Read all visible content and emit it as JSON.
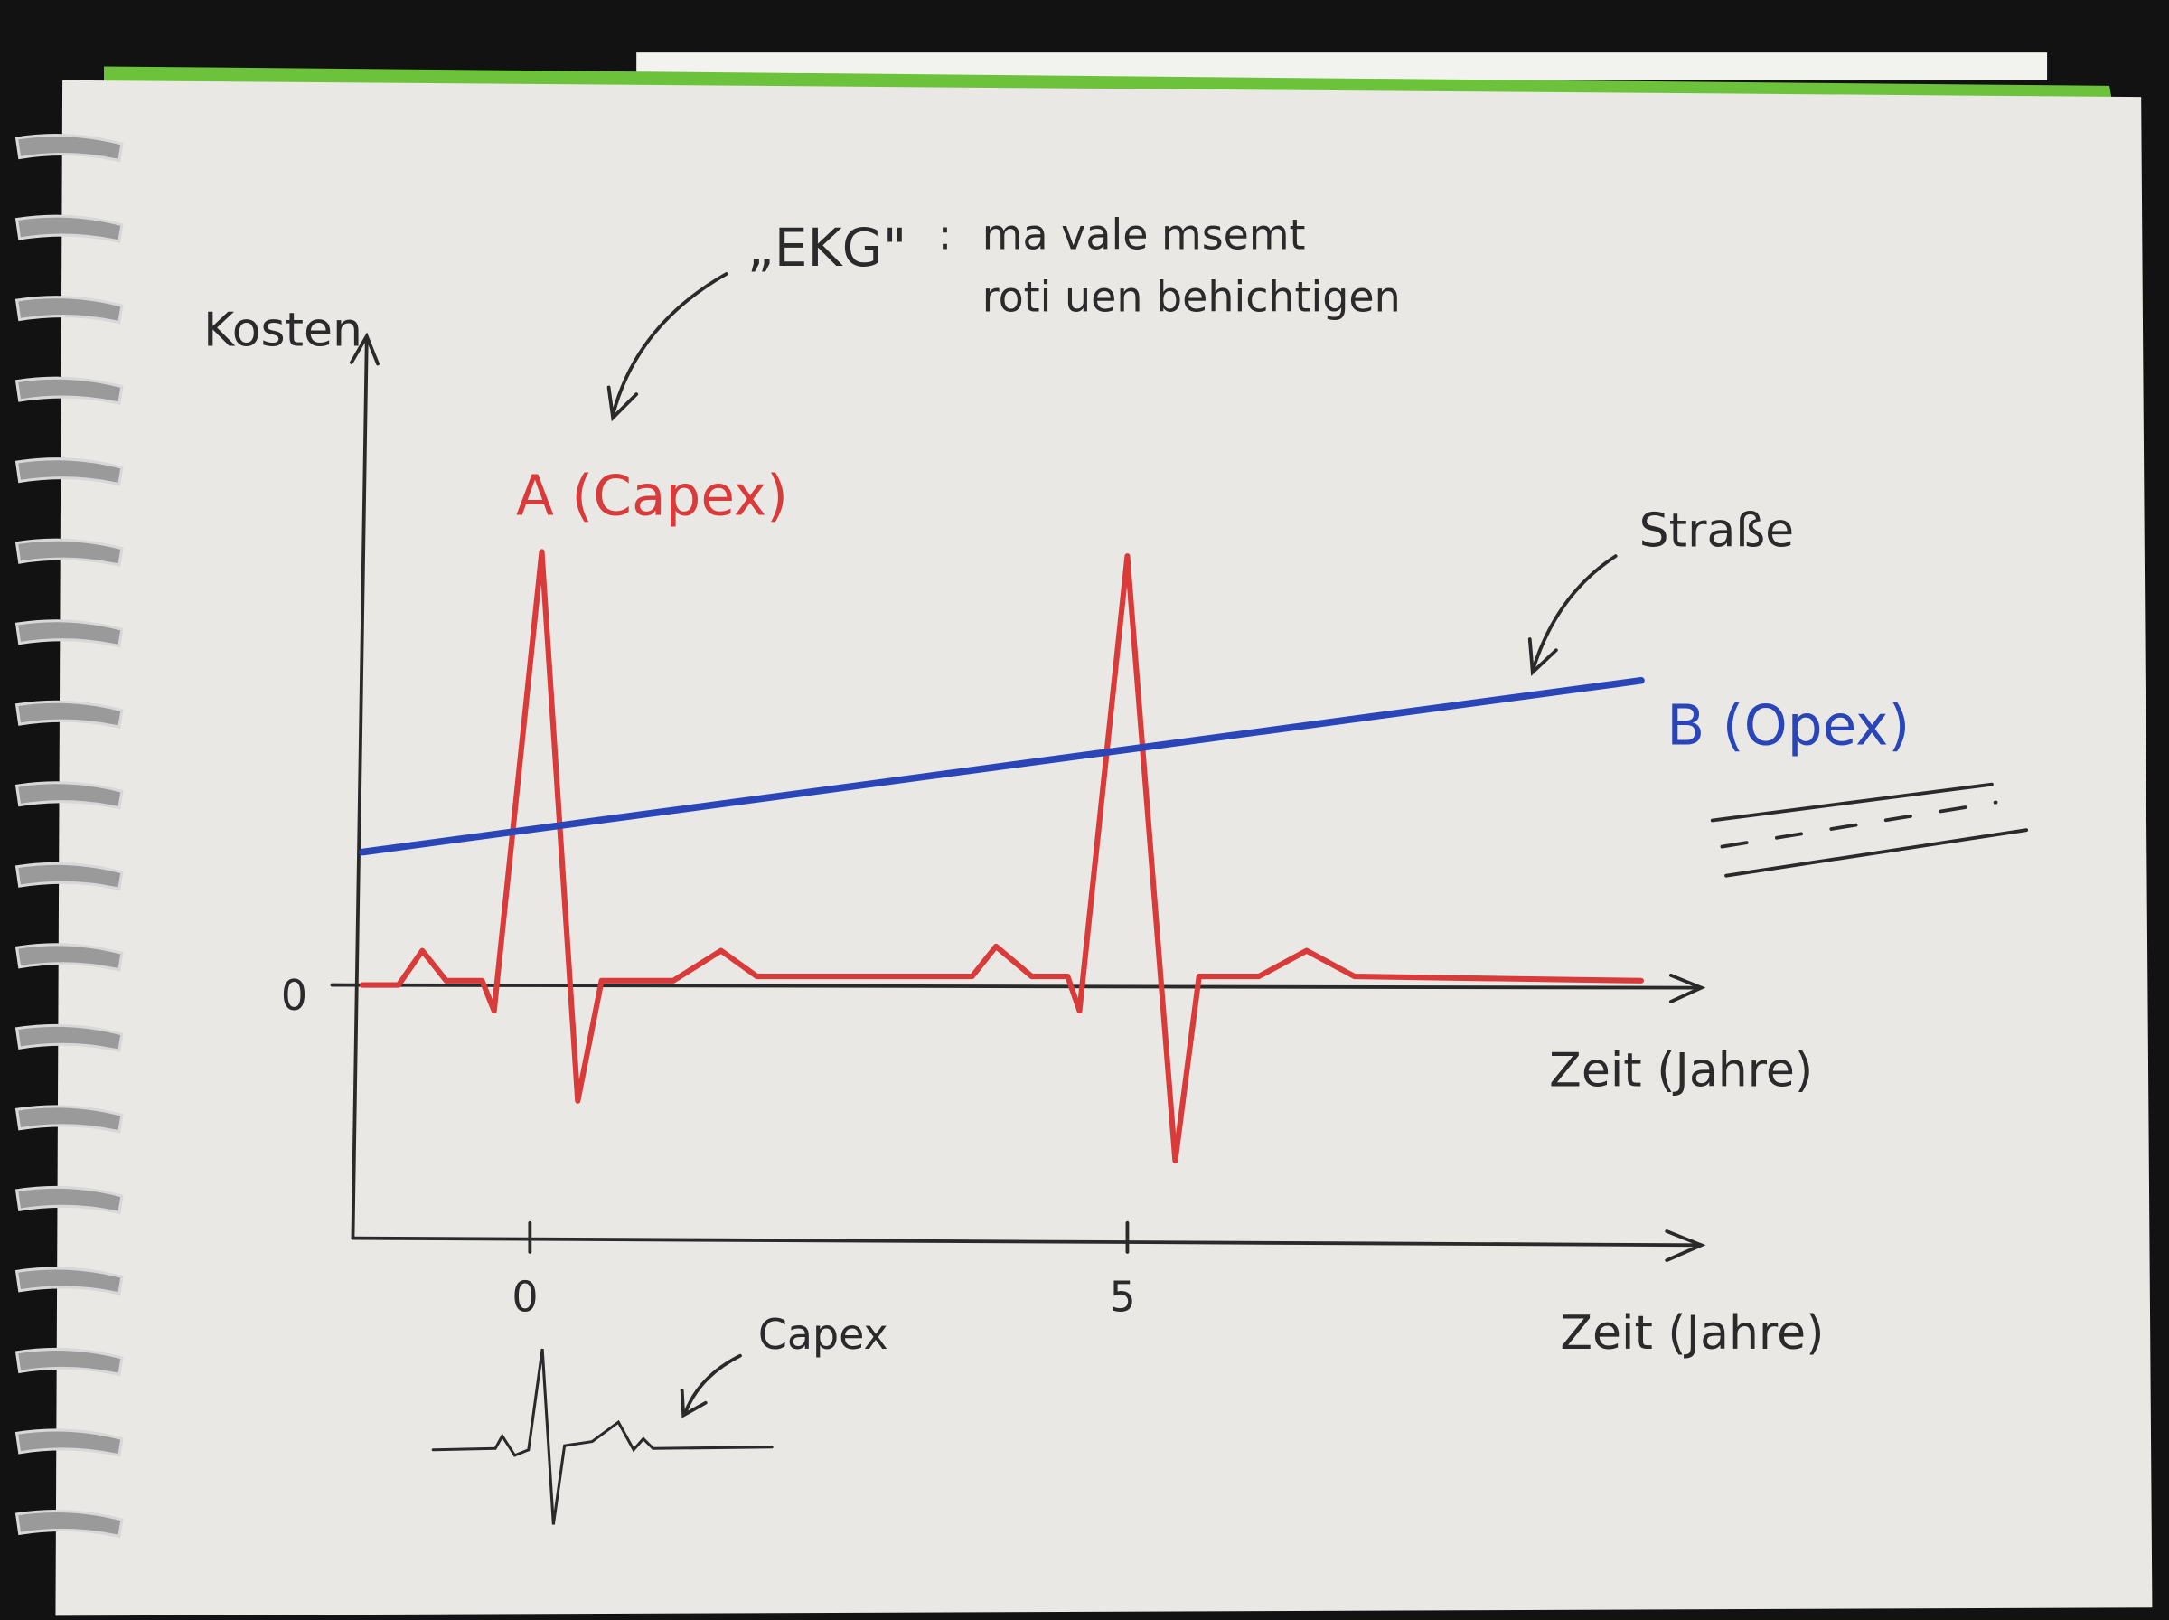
{
  "annotations": {
    "ekg_title": "„EKG\"",
    "ekg_colon": ":",
    "ekg_note_line1": "ma vale msemt",
    "ekg_note_line2": "roti uen behichtigen",
    "strasse": "Straße",
    "capex_small": "Capex"
  },
  "colors": {
    "series_a": "#d93a3a",
    "series_b": "#2a45b8",
    "ink": "#2a2a2a",
    "paper": "#e9e8e4",
    "cover_tab": "#6cc23a"
  },
  "chart_data": {
    "type": "line",
    "ylabel": "Kosten",
    "xlabel": "Zeit (Jahre)",
    "xlabel_lower": "Zeit (Jahre)",
    "y_ticks": [
      "0"
    ],
    "x_ticks": [
      {
        "value": 0,
        "label": "0"
      },
      {
        "value": 5,
        "label": "5"
      }
    ],
    "grid": false,
    "series": [
      {
        "name": "A (Capex)",
        "color": "#d93a3a",
        "points": [
          [
            -1.4,
            0
          ],
          [
            -1.1,
            0
          ],
          [
            -0.9,
            0.8
          ],
          [
            -0.7,
            0.1
          ],
          [
            -0.4,
            0.1
          ],
          [
            -0.3,
            -0.6
          ],
          [
            0.1,
            10.1
          ],
          [
            0.4,
            -2.7
          ],
          [
            0.6,
            0.1
          ],
          [
            1.2,
            0.1
          ],
          [
            1.6,
            0.8
          ],
          [
            1.9,
            0.2
          ],
          [
            3.7,
            0.2
          ],
          [
            3.9,
            0.9
          ],
          [
            4.2,
            0.2
          ],
          [
            4.5,
            0.2
          ],
          [
            4.6,
            -0.6
          ],
          [
            5.0,
            10.0
          ],
          [
            5.4,
            -4.1
          ],
          [
            5.6,
            0.2
          ],
          [
            6.1,
            0.2
          ],
          [
            6.5,
            0.8
          ],
          [
            6.9,
            0.2
          ],
          [
            9.3,
            0.1
          ]
        ]
      },
      {
        "name": "B (Opex)",
        "color": "#2a45b8",
        "points": [
          [
            -1.4,
            3.1
          ],
          [
            9.3,
            7.1
          ]
        ]
      }
    ]
  }
}
